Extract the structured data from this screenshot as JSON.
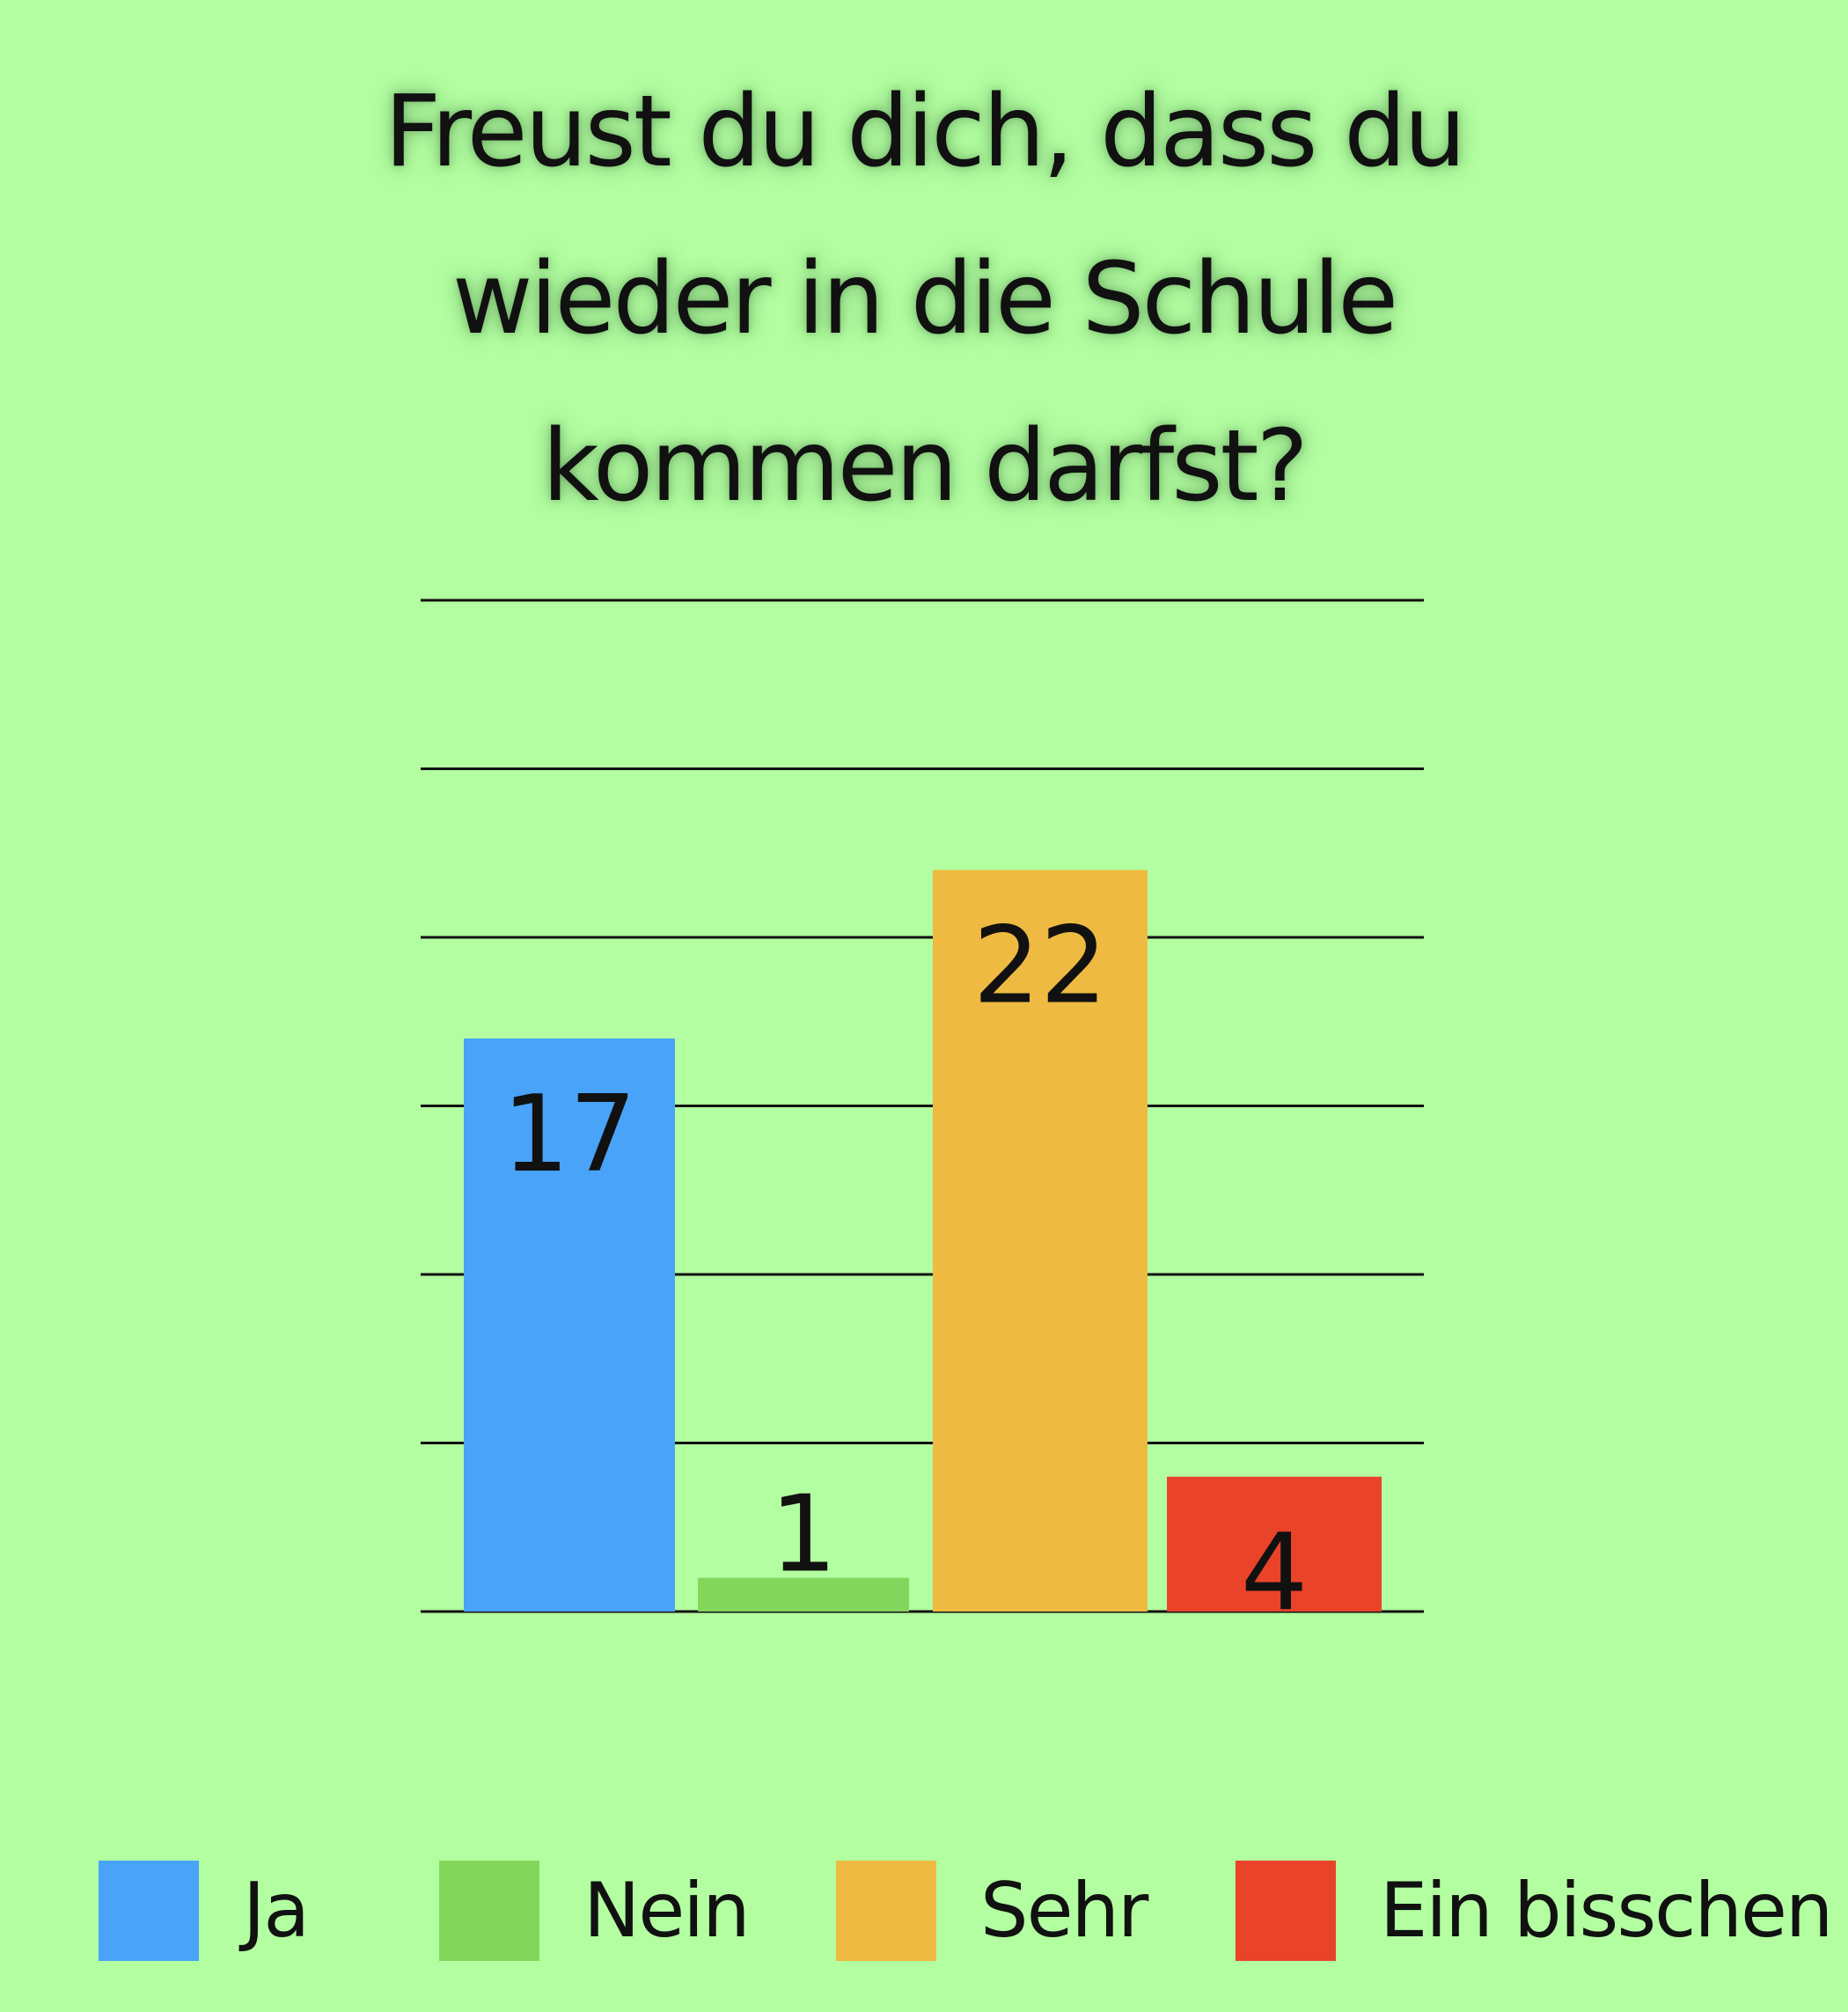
{
  "title_lines": [
    "Freust du dich, dass du",
    "wieder in die Schule",
    "kommen darfst?"
  ],
  "chart_data": {
    "type": "bar",
    "categories": [
      "Ja",
      "Nein",
      "Sehr",
      "Ein bisschen"
    ],
    "values": [
      17,
      1,
      22,
      4
    ],
    "colors": [
      "#49a3f8",
      "#82d65b",
      "#eeba41",
      "#e9432a"
    ],
    "title": "Freust du dich, dass du wieder in die Schule kommen darfst?",
    "xlabel": "",
    "ylabel": "",
    "ylim": [
      0,
      30
    ],
    "grid": true,
    "legend": "bottom",
    "data_labels": [
      "17",
      "1",
      "22",
      "4"
    ]
  }
}
